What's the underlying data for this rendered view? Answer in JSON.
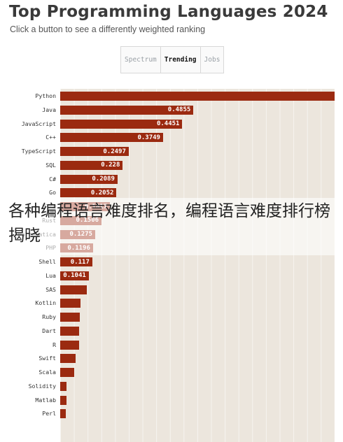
{
  "header": {
    "title": "Top Programming Languages 2024",
    "subtitle": "Click a button to see a differently weighted ranking"
  },
  "tabs": [
    {
      "label": "Spectrum",
      "active": false
    },
    {
      "label": "Trending",
      "active": true
    },
    {
      "label": "Jobs",
      "active": false
    }
  ],
  "overlay_caption": "各种编程语言难度排名，编程语言难度排行榜揭晓",
  "colors": {
    "bar": "#9b2a10",
    "bar_background": "#ece6dd"
  },
  "chart_data": {
    "type": "bar",
    "orientation": "horizontal",
    "xlim": [
      0,
      1
    ],
    "categories": [
      "Python",
      "Java",
      "JavaScript",
      "C++",
      "TypeScript",
      "SQL",
      "C#",
      "Go",
      "HTML",
      "Rust",
      "Mathematica",
      "PHP",
      "Shell",
      "Lua",
      "SAS",
      "Kotlin",
      "Ruby",
      "Dart",
      "R",
      "Swift",
      "Scala",
      "Solidity",
      "Matlab",
      "Perl"
    ],
    "values": [
      1.0,
      0.4855,
      0.4451,
      0.3749,
      0.2497,
      0.228,
      0.2089,
      0.2052,
      0.1817,
      0.1506,
      0.1275,
      0.1196,
      0.117,
      0.1041,
      0.097,
      0.074,
      0.072,
      0.07,
      0.068,
      0.057,
      0.05,
      0.022,
      0.022,
      0.021
    ],
    "labels": [
      "",
      "0.4855",
      "0.4451",
      "0.3749",
      "0.2497",
      "0.228",
      "0.2089",
      "0.2052",
      "0.1817",
      "0.1506",
      "0.1275",
      "0.1196",
      "0.117",
      "0.1041",
      "",
      "",
      "",
      "",
      "",
      "",
      "",
      "",
      "",
      ""
    ]
  }
}
